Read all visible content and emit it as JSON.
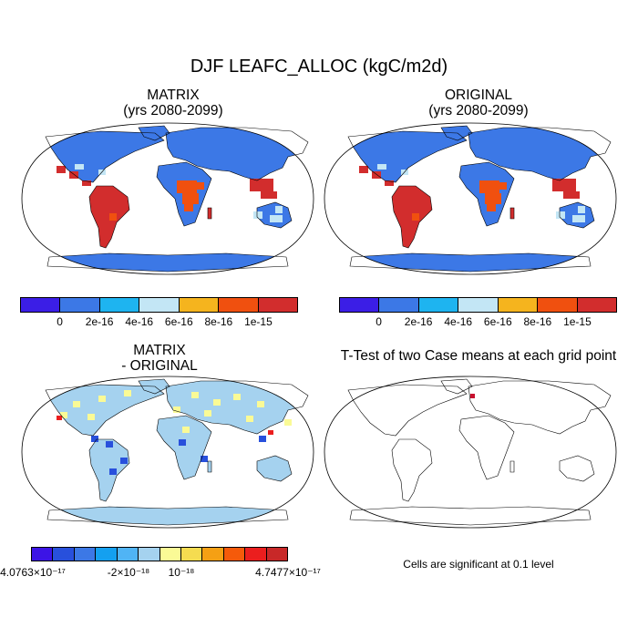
{
  "title": "DJF LEAFC_ALLOC (kgC/m2d)",
  "panels": {
    "tl": {
      "title1": "MATRIX",
      "title2": "(yrs 2080-2099)"
    },
    "tr": {
      "title1": "ORIGINAL",
      "title2": "(yrs 2080-2099)"
    },
    "bl": {
      "title1": "MATRIX",
      "title2": "- ORIGINAL"
    },
    "br": {
      "title1": "T-Test of two Case means at each grid point",
      "note": "Cells are significant at 0.1 level"
    }
  },
  "colorbar_top": {
    "colors": [
      "#3b1ee6",
      "#3c78e6",
      "#1eb4f0",
      "#c3e6f5",
      "#f5b41e",
      "#f0500f",
      "#d22d2d"
    ],
    "labels": [
      "0",
      "2e-16",
      "4e-16",
      "6e-16",
      "8e-16",
      "1e-15"
    ]
  },
  "colorbar_diff": {
    "colors": [
      "#3c14e6",
      "#2850dc",
      "#3c78e6",
      "#14a0f0",
      "#50b4f5",
      "#a5d2ef",
      "#fafa96",
      "#f5dc50",
      "#f5a014",
      "#f55a0a",
      "#eb1e1e",
      "#c82828"
    ],
    "labels": [
      "-4.0763×10⁻¹⁷",
      "-2×10⁻¹⁸",
      "10⁻¹⁸",
      "4.7477×10⁻¹⁷"
    ]
  },
  "map_colors": {
    "ocean": "#ffffff",
    "land_high_lat": "#3c78e6",
    "tropics": "#d22d2d",
    "savanna": "#f0500f",
    "sig_cell": "#c8102e",
    "diff_base": "#a5d2ef",
    "diff_pos": "#fafa96",
    "diff_neg": "#2850dc"
  }
}
